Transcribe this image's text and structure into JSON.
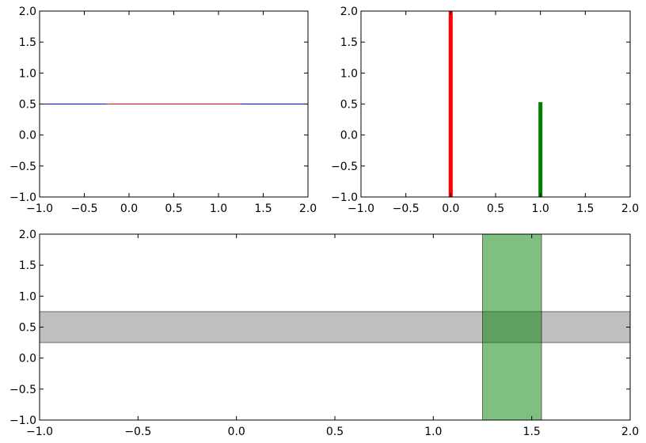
{
  "chart_data": [
    {
      "type": "line",
      "panel": "top-left",
      "xlim": [
        -1.0,
        2.0
      ],
      "ylim": [
        -1.0,
        2.0
      ],
      "xticks": [
        "−1.0",
        "−0.5",
        "0.0",
        "0.5",
        "1.0",
        "1.5",
        "2.0"
      ],
      "yticks": [
        "−1.0",
        "−0.5",
        "0.0",
        "0.5",
        "1.0",
        "1.5",
        "2.0"
      ],
      "grid": false,
      "series": [
        {
          "kind": "axhline",
          "y": 0.5,
          "color": "#0000ff"
        },
        {
          "kind": "hline",
          "y": 0.5,
          "xmin": -0.25,
          "xmax": 1.25,
          "color": "#ff0000"
        }
      ]
    },
    {
      "type": "line",
      "panel": "top-right",
      "xlim": [
        -1.0,
        2.0
      ],
      "ylim": [
        -1.0,
        2.0
      ],
      "xticks": [
        "−1.0",
        "−0.5",
        "0.0",
        "0.5",
        "1.0",
        "1.5",
        "2.0"
      ],
      "yticks": [
        "−1.0",
        "−0.5",
        "0.0",
        "0.5",
        "1.0",
        "1.5",
        "2.0"
      ],
      "grid": false,
      "series": [
        {
          "kind": "vline",
          "x": 0.0,
          "ymin": -1.0,
          "ymax": 2.0,
          "color": "#ff0000"
        },
        {
          "kind": "vline",
          "x": 1.0,
          "ymin": -1.0,
          "ymax": 0.53,
          "color": "#007f00"
        }
      ]
    },
    {
      "type": "area",
      "panel": "bottom",
      "xlim": [
        -1.0,
        2.0
      ],
      "ylim": [
        -1.0,
        2.0
      ],
      "xticks": [
        "−1.0",
        "−0.5",
        "0.0",
        "0.5",
        "1.0",
        "1.5",
        "2.0"
      ],
      "yticks": [
        "−1.0",
        "−0.5",
        "0.0",
        "0.5",
        "1.0",
        "1.5",
        "2.0"
      ],
      "grid": false,
      "series": [
        {
          "kind": "axhspan",
          "ymin": 0.25,
          "ymax": 0.75,
          "color": "#808080",
          "alpha": 0.5
        },
        {
          "kind": "axvspan",
          "xmin": 1.25,
          "xmax": 1.55,
          "color": "#008000",
          "alpha": 0.5
        }
      ]
    }
  ]
}
